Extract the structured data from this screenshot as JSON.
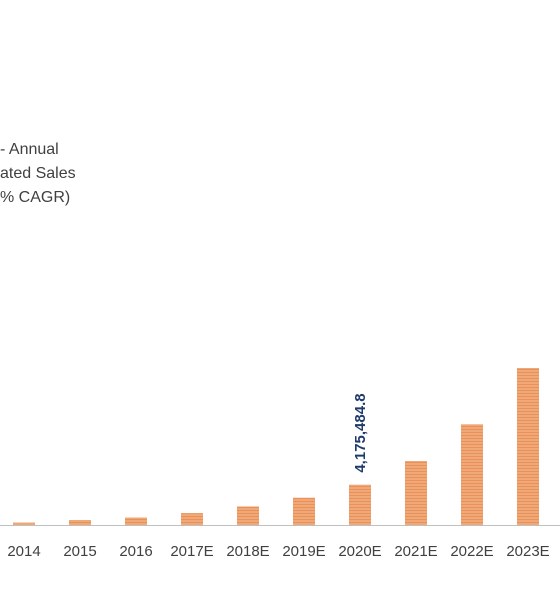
{
  "legend": {
    "lines": [
      "- Annual",
      "ated Sales",
      "% CAGR)"
    ]
  },
  "colors": {
    "bar": "#f0a878",
    "bar_stripe": "#e8925a",
    "axis": "#bfbfbf",
    "label": "#1f3b6b"
  },
  "chart_data": {
    "type": "bar",
    "categories": [
      "2014",
      "2015",
      "2016",
      "2017E",
      "2018E",
      "2019E",
      "2020E",
      "2021E",
      "2022E",
      "2023E"
    ],
    "values": [
      250,
      520,
      780,
      1230,
      1920,
      2830,
      4175.4848,
      6620,
      10420,
      16250
    ],
    "ylim": [
      0,
      16500
    ],
    "data_labels": [
      {
        "category": "2020E",
        "text": "4,175,484.8"
      }
    ],
    "grid": false,
    "legend_position": "left"
  }
}
